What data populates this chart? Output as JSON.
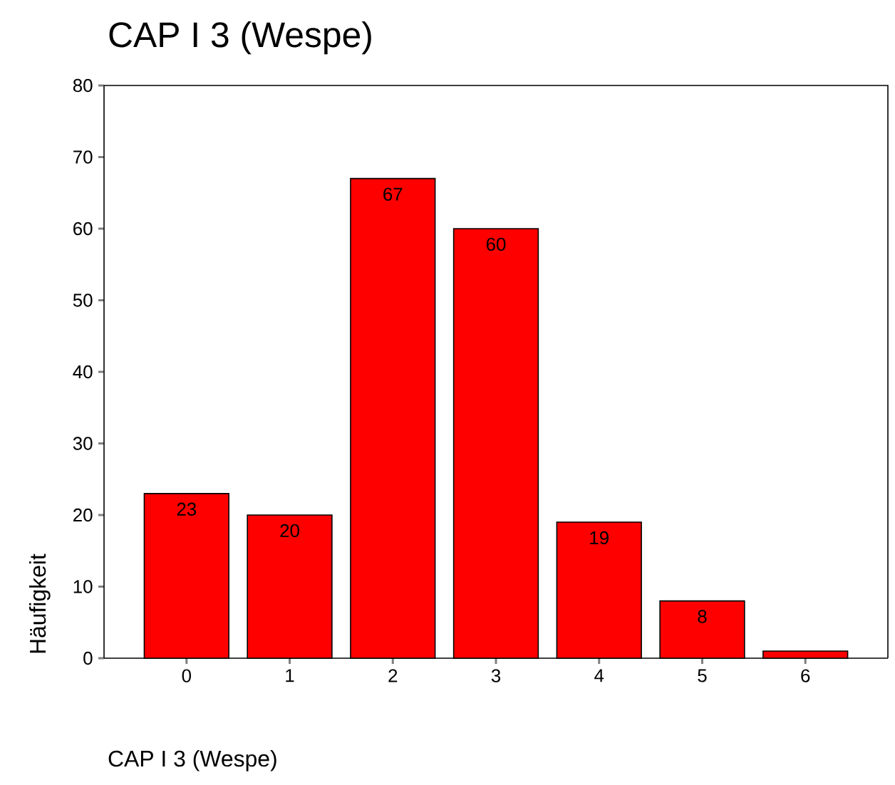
{
  "chart_data": {
    "type": "bar",
    "title": "CAP I 3 (Wespe)",
    "xlabel": "CAP I 3 (Wespe)",
    "ylabel": "Häufigkeit",
    "categories": [
      "0",
      "1",
      "2",
      "3",
      "4",
      "5",
      "6"
    ],
    "values": [
      23,
      20,
      67,
      60,
      19,
      8,
      1
    ],
    "value_labels": [
      "23",
      "20",
      "67",
      "60",
      "19",
      "8",
      null
    ],
    "color": "#ff0000",
    "ylim": [
      0,
      80
    ],
    "yticks": [
      0,
      10,
      20,
      30,
      40,
      50,
      60,
      70,
      80
    ]
  }
}
